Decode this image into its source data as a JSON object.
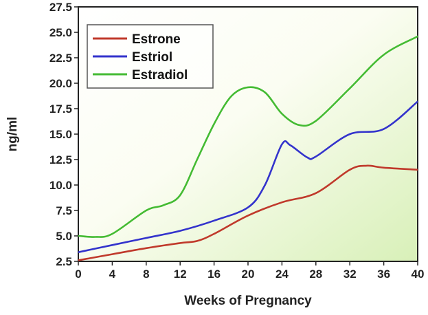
{
  "chart_data": {
    "type": "line",
    "xlabel": "Weeks of Pregnancy",
    "ylabel": "ng/ml",
    "xlim": [
      0,
      40
    ],
    "ylim": [
      2.5,
      27.5
    ],
    "x_ticks": [
      0,
      4,
      8,
      12,
      16,
      20,
      24,
      28,
      32,
      36,
      40
    ],
    "y_ticks": [
      2.5,
      5.0,
      7.5,
      10.0,
      12.5,
      15.0,
      17.5,
      20.0,
      22.5,
      25.0,
      27.5
    ],
    "y_tick_labels": [
      "2.5",
      "5.0",
      "7.5",
      "10.0",
      "12.5",
      "15.0",
      "17.5",
      "20.0",
      "22.5",
      "25.0",
      "27.5"
    ],
    "legend_position": "top-left",
    "background": "gradient white to light green",
    "series": [
      {
        "name": "Estrone",
        "color": "#c0392b",
        "points": [
          [
            0,
            2.6
          ],
          [
            4,
            3.2
          ],
          [
            8,
            3.8
          ],
          [
            12,
            4.3
          ],
          [
            14,
            4.5
          ],
          [
            16,
            5.2
          ],
          [
            20,
            7.0
          ],
          [
            24,
            8.3
          ],
          [
            28,
            9.2
          ],
          [
            32,
            11.5
          ],
          [
            34,
            11.9
          ],
          [
            36,
            11.7
          ],
          [
            40,
            11.5
          ]
        ]
      },
      {
        "name": "Estriol",
        "color": "#3333cc",
        "points": [
          [
            0,
            3.4
          ],
          [
            4,
            4.1
          ],
          [
            8,
            4.8
          ],
          [
            12,
            5.5
          ],
          [
            16,
            6.5
          ],
          [
            20,
            7.8
          ],
          [
            22,
            10.0
          ],
          [
            24,
            14.0
          ],
          [
            25,
            13.9
          ],
          [
            27,
            12.7
          ],
          [
            28,
            12.8
          ],
          [
            32,
            15.0
          ],
          [
            36,
            15.5
          ],
          [
            40,
            18.2
          ]
        ]
      },
      {
        "name": "Estradiol",
        "color": "#44bb33",
        "points": [
          [
            0,
            5.0
          ],
          [
            2,
            4.9
          ],
          [
            4,
            5.2
          ],
          [
            8,
            7.5
          ],
          [
            10,
            8.0
          ],
          [
            12,
            9.0
          ],
          [
            14,
            12.5
          ],
          [
            16,
            16.0
          ],
          [
            18,
            18.7
          ],
          [
            20,
            19.6
          ],
          [
            22,
            19.1
          ],
          [
            24,
            17.0
          ],
          [
            26,
            15.9
          ],
          [
            28,
            16.3
          ],
          [
            32,
            19.5
          ],
          [
            36,
            22.8
          ],
          [
            40,
            24.6
          ]
        ]
      }
    ]
  }
}
